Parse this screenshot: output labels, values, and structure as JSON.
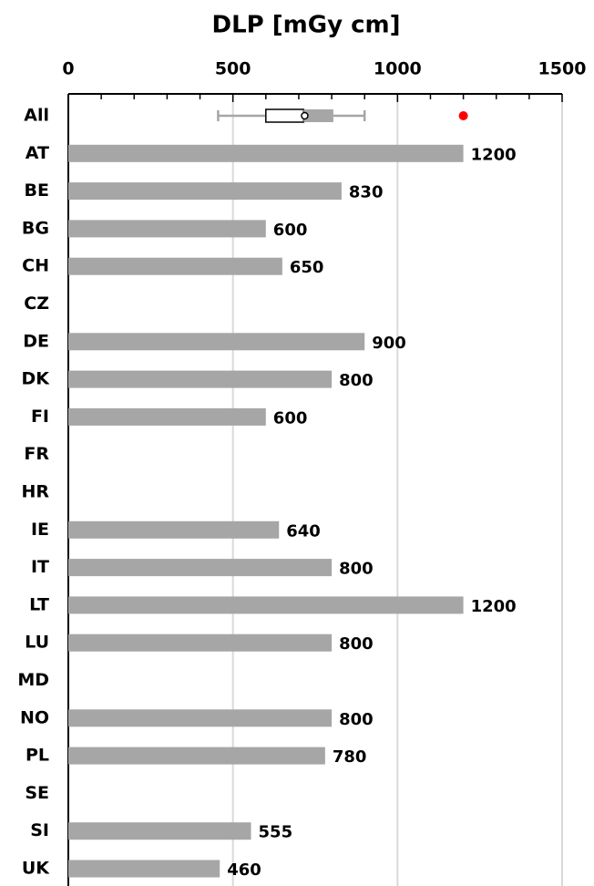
{
  "chart_data": {
    "type": "bar",
    "orientation": "horizontal",
    "title": "DLP [mGy cm]",
    "categories": [
      "All",
      "AT",
      "BE",
      "BG",
      "CH",
      "CZ",
      "DE",
      "DK",
      "FI",
      "FR",
      "HR",
      "IE",
      "IT",
      "LT",
      "LU",
      "MD",
      "NO",
      "PL",
      "SE",
      "SI",
      "UK"
    ],
    "values": [
      null,
      1200,
      830,
      600,
      650,
      null,
      900,
      800,
      600,
      null,
      null,
      640,
      800,
      1200,
      800,
      null,
      800,
      780,
      null,
      555,
      460
    ],
    "color": "#a6a6a6",
    "box": {
      "category": 0,
      "whisker_low": 455,
      "q1": 600,
      "median": 715,
      "q3": 805,
      "whisker_high": 900,
      "mean": 718,
      "outliers": [
        1200
      ],
      "outlier_color": "#ff0000"
    },
    "xlim": [
      0,
      1500
    ],
    "xticks": [
      0,
      500,
      1000,
      1500
    ],
    "xminor": [
      100,
      200,
      300,
      400,
      600,
      700,
      800,
      900,
      1100,
      1200,
      1300,
      1400
    ],
    "grid": true
  }
}
